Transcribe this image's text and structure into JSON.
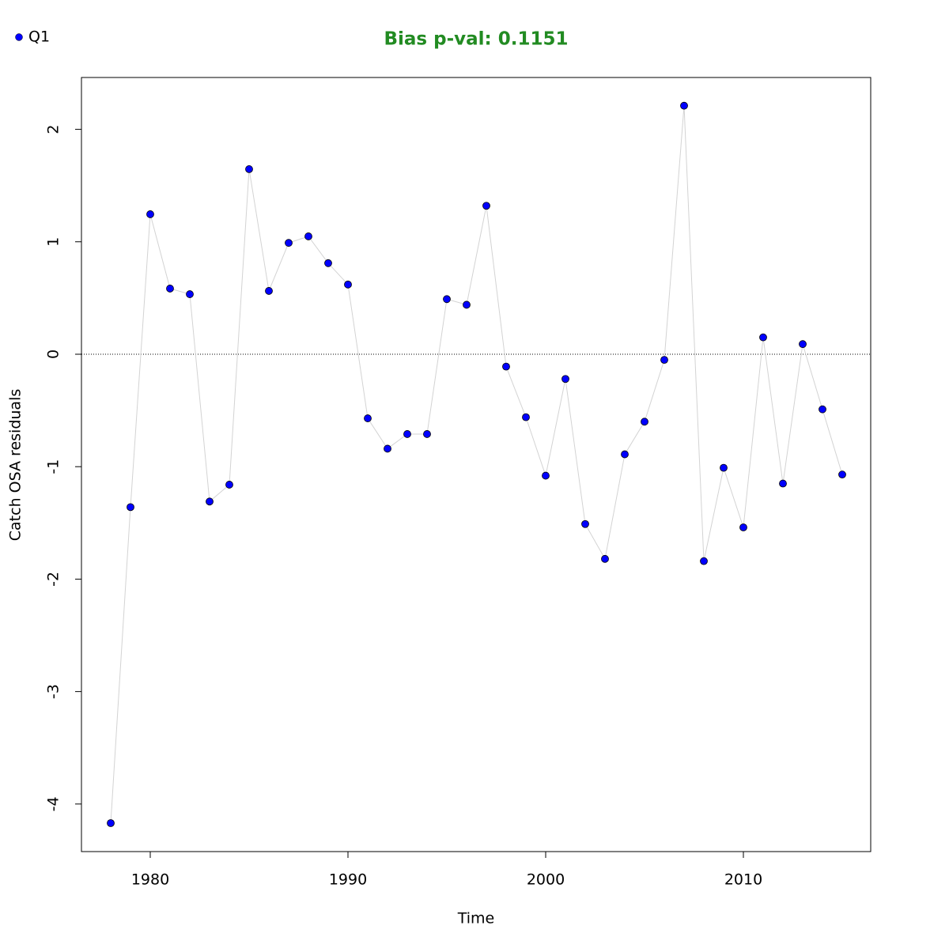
{
  "chart_data": {
    "type": "line",
    "title": "Bias p-val: 0.1151",
    "title_color": "#228b22",
    "x_label": "Time",
    "y_label": "Catch OSA residuals",
    "x": [
      1978,
      1979,
      1980,
      1981,
      1982,
      1983,
      1984,
      1985,
      1986,
      1987,
      1988,
      1989,
      1990,
      1991,
      1992,
      1993,
      1994,
      1995,
      1996,
      1997,
      1998,
      1999,
      2000,
      2001,
      2002,
      2003,
      2004,
      2005,
      2006,
      2007,
      2008,
      2009,
      2010,
      2011,
      2012,
      2013,
      2014,
      2015
    ],
    "series": [
      {
        "name": "Q1",
        "color": "#0000ff",
        "line_color": "#d3d3d3",
        "values": [
          -4.17,
          -1.36,
          1.245,
          0.584,
          0.534,
          -1.31,
          -1.16,
          1.646,
          0.563,
          0.99,
          1.048,
          0.81,
          0.62,
          -0.57,
          -0.84,
          -0.71,
          -0.71,
          0.49,
          0.44,
          1.32,
          -0.11,
          -0.56,
          -1.08,
          -0.22,
          -1.51,
          -1.82,
          -0.89,
          -0.6,
          -0.05,
          2.21,
          -1.84,
          -1.01,
          -1.54,
          0.15,
          -1.15,
          0.09,
          -0.49,
          -1.07
        ]
      }
    ],
    "xlim": [
      1976.52,
      2016.44
    ],
    "ylim": [
      -4.423,
      2.461
    ],
    "xticks": [
      1980,
      1990,
      2000,
      2010
    ],
    "yticks": [
      -4,
      -3,
      -2,
      -1,
      0,
      1,
      2
    ],
    "hline": 0,
    "legend": "top-left"
  }
}
